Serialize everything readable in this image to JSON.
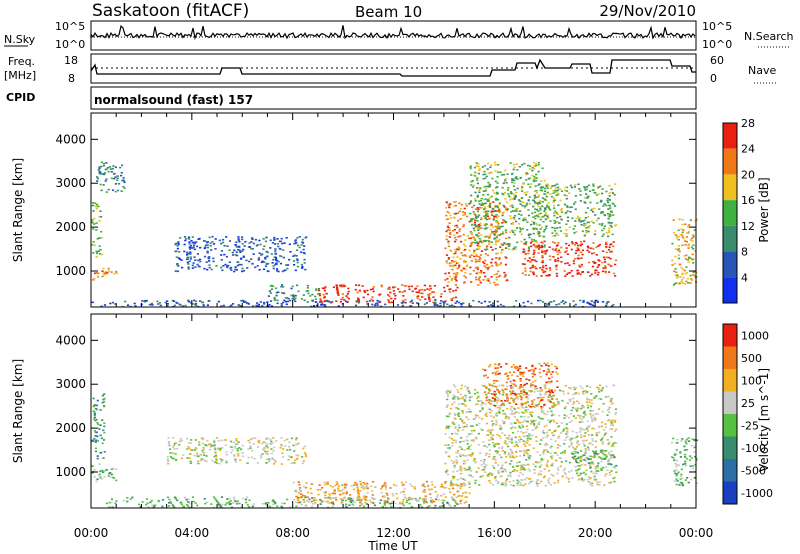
{
  "header": {
    "title": "Saskatoon (fitACF)",
    "beam": "Beam 10",
    "date": "29/Nov/2010"
  },
  "status_panels": {
    "nsky": {
      "label": "N.Sky",
      "ticks": [
        "10^5",
        "10^0"
      ]
    },
    "nsearch": {
      "label": "N.Search",
      "ticks": [
        "10^5",
        "10^0"
      ]
    },
    "freq": {
      "label_top": "Freq.",
      "label_bottom": "[MHz]",
      "ticks": [
        "18",
        "8"
      ]
    },
    "nave": {
      "label": "Nave",
      "ticks": [
        "60",
        "0"
      ]
    },
    "cpid": {
      "label": "CPID",
      "value": "normalsound (fast) 157"
    }
  },
  "chart_data": [
    {
      "type": "heatmap",
      "panel": "power",
      "xlabel": "Time UT",
      "ylabel": "Slant Range [km]",
      "x_ticks": [
        "00:00",
        "04:00",
        "08:00",
        "12:00",
        "16:00",
        "20:00",
        "00:00"
      ],
      "x_range_hours": [
        0,
        24
      ],
      "y_ticks": [
        1000,
        2000,
        3000,
        4000
      ],
      "ylim": [
        180,
        4600
      ],
      "colorbar": {
        "label": "Power [dB]",
        "ticks": [
          "4",
          "8",
          "12",
          "16",
          "20",
          "24",
          "28"
        ],
        "colors": [
          "#1030f0",
          "#2a55b8",
          "#3a8c6e",
          "#40b040",
          "#f0c020",
          "#f07818",
          "#e82010"
        ]
      },
      "regions": [
        {
          "t": [
            0.0,
            1.0
          ],
          "r": [
            800,
            1100
          ],
          "level": 5
        },
        {
          "t": [
            0.0,
            0.4
          ],
          "r": [
            1300,
            2600
          ],
          "level": 3
        },
        {
          "t": [
            0.2,
            1.3
          ],
          "r": [
            2800,
            3500
          ],
          "level": 2
        },
        {
          "t": [
            3.3,
            8.5
          ],
          "r": [
            1000,
            1800
          ],
          "level": 1
        },
        {
          "t": [
            7.0,
            9.0
          ],
          "r": [
            300,
            700
          ],
          "level": 2
        },
        {
          "t": [
            9.0,
            14.5
          ],
          "r": [
            300,
            700
          ],
          "level": 6
        },
        {
          "t": [
            14.0,
            16.5
          ],
          "r": [
            700,
            2600
          ],
          "level": 5
        },
        {
          "t": [
            15.0,
            18.0
          ],
          "r": [
            1500,
            3500
          ],
          "level": 3
        },
        {
          "t": [
            17.0,
            20.8
          ],
          "r": [
            900,
            1700
          ],
          "level": 6
        },
        {
          "t": [
            17.5,
            20.8
          ],
          "r": [
            1800,
            3000
          ],
          "level": 3
        },
        {
          "t": [
            23.0,
            24.0
          ],
          "r": [
            700,
            2200
          ],
          "level": 4
        },
        {
          "t": [
            0.0,
            20.8
          ],
          "r": [
            200,
            350
          ],
          "level": 1
        }
      ]
    },
    {
      "type": "heatmap",
      "panel": "velocity",
      "xlabel": "Time UT",
      "ylabel": "Slant Range [km]",
      "x_ticks": [
        "00:00",
        "04:00",
        "08:00",
        "12:00",
        "16:00",
        "20:00",
        "00:00"
      ],
      "x_range_hours": [
        0,
        24
      ],
      "y_ticks": [
        1000,
        2000,
        3000,
        4000
      ],
      "ylim": [
        180,
        4600
      ],
      "colorbar": {
        "label": "Velocity [m s^-1]",
        "ticks": [
          "1000",
          "500",
          "100",
          "25",
          "-25",
          "-100",
          "-500",
          "-1000"
        ],
        "colors": [
          "#1a3fc0",
          "#2f6ea5",
          "#3a8c6e",
          "#56c040",
          "#c8c8c8",
          "#f0b020",
          "#f07818",
          "#e82010"
        ]
      },
      "regions": [
        {
          "t": [
            0.0,
            1.0
          ],
          "r": [
            800,
            1200
          ],
          "level": 3
        },
        {
          "t": [
            0.0,
            0.5
          ],
          "r": [
            1300,
            2800
          ],
          "level": 2
        },
        {
          "t": [
            0.5,
            14.5
          ],
          "r": [
            200,
            450
          ],
          "level": 3
        },
        {
          "t": [
            3.0,
            8.5
          ],
          "r": [
            1200,
            1800
          ],
          "level": 4
        },
        {
          "t": [
            8.0,
            15.0
          ],
          "r": [
            300,
            800
          ],
          "level": 5
        },
        {
          "t": [
            14.0,
            20.8
          ],
          "r": [
            700,
            3000
          ],
          "level": 4
        },
        {
          "t": [
            15.5,
            18.5
          ],
          "r": [
            2500,
            3500
          ],
          "level": 6
        },
        {
          "t": [
            19.0,
            20.8
          ],
          "r": [
            1000,
            1500
          ],
          "level": 3
        },
        {
          "t": [
            23.0,
            24.0
          ],
          "r": [
            700,
            1800
          ],
          "level": 3
        }
      ]
    }
  ]
}
